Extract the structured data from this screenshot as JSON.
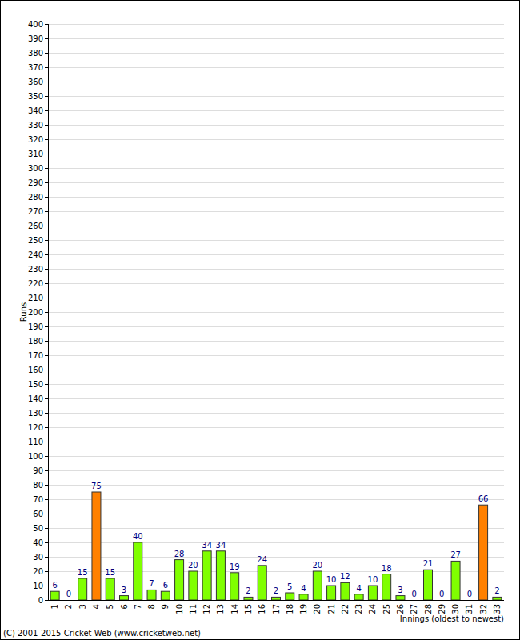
{
  "chart_data": {
    "type": "bar",
    "xlabel": "Innings (oldest to newest)",
    "ylabel": "Runs",
    "annotations": [
      "(C) 2001-2015 Cricket Web (www.cricketweb.net)"
    ],
    "categories": [
      "1",
      "2",
      "3",
      "4",
      "5",
      "6",
      "7",
      "8",
      "9",
      "10",
      "11",
      "12",
      "13",
      "14",
      "15",
      "16",
      "17",
      "18",
      "19",
      "20",
      "21",
      "22",
      "23",
      "24",
      "25",
      "26",
      "27",
      "28",
      "29",
      "30",
      "31",
      "32",
      "33"
    ],
    "values": [
      6,
      0,
      15,
      75,
      15,
      3,
      40,
      7,
      6,
      28,
      20,
      34,
      34,
      19,
      2,
      24,
      2,
      5,
      4,
      20,
      10,
      12,
      4,
      10,
      18,
      3,
      0,
      21,
      0,
      27,
      0,
      66,
      2
    ],
    "colors": [
      "#80ff00",
      "#80ff00",
      "#80ff00",
      "#ff8000",
      "#80ff00",
      "#80ff00",
      "#80ff00",
      "#80ff00",
      "#80ff00",
      "#80ff00",
      "#80ff00",
      "#80ff00",
      "#80ff00",
      "#80ff00",
      "#80ff00",
      "#80ff00",
      "#80ff00",
      "#80ff00",
      "#80ff00",
      "#80ff00",
      "#80ff00",
      "#80ff00",
      "#80ff00",
      "#80ff00",
      "#80ff00",
      "#80ff00",
      "#80ff00",
      "#80ff00",
      "#80ff00",
      "#80ff00",
      "#80ff00",
      "#ff8000",
      "#80ff00"
    ],
    "ylim": [
      0,
      400
    ],
    "yticks": [
      0,
      10,
      20,
      30,
      40,
      50,
      60,
      70,
      80,
      90,
      100,
      110,
      120,
      130,
      140,
      150,
      160,
      170,
      180,
      190,
      200,
      210,
      220,
      230,
      240,
      250,
      260,
      270,
      280,
      290,
      300,
      310,
      320,
      330,
      340,
      350,
      360,
      370,
      380,
      390,
      400
    ],
    "grid": true,
    "data_labels": true
  }
}
